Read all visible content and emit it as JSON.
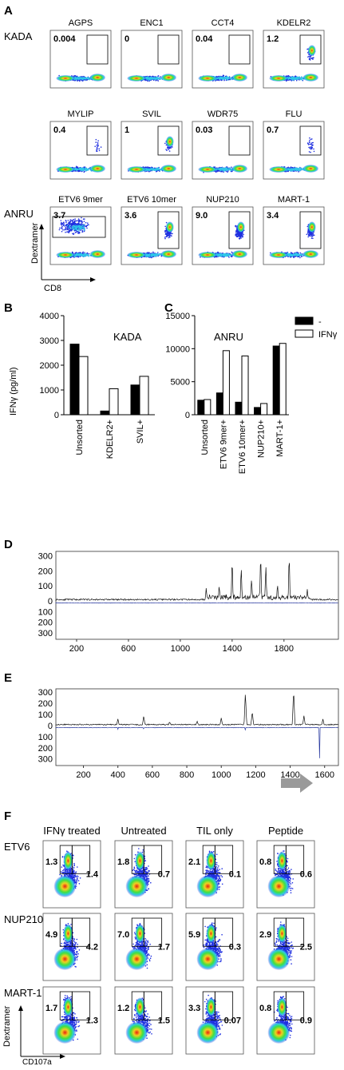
{
  "panelA": {
    "label": "A",
    "row_labels": [
      "KADA",
      "",
      "ANRU"
    ],
    "rows": [
      [
        {
          "title": "AGPS",
          "value": "0.004",
          "gate": "tr"
        },
        {
          "title": "ENC1",
          "value": "0",
          "gate": "tr"
        },
        {
          "title": "CCT4",
          "value": "0.04",
          "gate": "tr"
        },
        {
          "title": "KDELR2",
          "value": "1.2",
          "gate": "tr"
        }
      ],
      [
        {
          "title": "MYLIP",
          "value": "0.4",
          "gate": "tr"
        },
        {
          "title": "SVIL",
          "value": "1",
          "gate": "tr"
        },
        {
          "title": "WDR75",
          "value": "0.03",
          "gate": "tr"
        },
        {
          "title": "FLU",
          "value": "0.7",
          "gate": "tr"
        }
      ],
      [
        {
          "title": "ETV6 9mer",
          "value": "3.7",
          "gate": "wide"
        },
        {
          "title": "ETV6 10mer",
          "value": "3.6",
          "gate": "tr"
        },
        {
          "title": "NUP210",
          "value": "9.0",
          "gate": "tr"
        },
        {
          "title": "MART-1",
          "value": "3.4",
          "gate": "tr"
        }
      ]
    ],
    "ylabel": "Dextramer",
    "xlabel": "CD8"
  },
  "panelB": {
    "label": "B",
    "chart_data": {
      "type": "bar",
      "title": "KADA",
      "ylabel": "IFNγ (pg/ml)",
      "ylim": [
        0,
        4000
      ],
      "yticks": [
        "0",
        "1000",
        "2000",
        "3000",
        "4000"
      ],
      "categories": [
        "Unsorted",
        "KDELR2+",
        "SVIL+"
      ],
      "series": [
        {
          "name": "-",
          "values": [
            2850,
            150,
            1200
          ],
          "color": "#000000"
        },
        {
          "name": "IFNγ",
          "values": [
            2350,
            1050,
            1550
          ],
          "color": "#ffffff"
        }
      ]
    }
  },
  "panelC": {
    "label": "C",
    "chart_data": {
      "type": "bar",
      "title": "ANRU",
      "ylim": [
        0,
        15000
      ],
      "yticks": [
        "0",
        "5000",
        "10000",
        "15000"
      ],
      "categories": [
        "Unsorted",
        "ETV6 9mer+",
        "ETV6 10mer+",
        "NUP210+",
        "MART-1+"
      ],
      "series": [
        {
          "name": "-",
          "values": [
            2200,
            3300,
            1900,
            1100,
            10400
          ],
          "color": "#000000"
        },
        {
          "name": "IFNγ",
          "values": [
            2300,
            9700,
            8900,
            1700,
            10800
          ],
          "color": "#ffffff"
        }
      ]
    },
    "legend": [
      {
        "label": "-",
        "fill": "#000000"
      },
      {
        "label": "IFNγ",
        "fill": "#ffffff"
      }
    ]
  },
  "panelD": {
    "label": "D",
    "chart_data": {
      "type": "line",
      "xticks": [
        "200",
        "600",
        "1000",
        "1400",
        "1800"
      ],
      "xlim": [
        40,
        2220
      ],
      "yticks_top": [
        "300",
        "200",
        "100",
        "0"
      ],
      "yticks_bottom": [
        "100",
        "200",
        "300"
      ],
      "peaks_up": [
        [
          1400,
          300
        ],
        [
          1470,
          240
        ],
        [
          1620,
          330
        ],
        [
          1660,
          250
        ],
        [
          1840,
          330
        ],
        [
          1550,
          160
        ],
        [
          1300,
          110
        ],
        [
          1200,
          90
        ],
        [
          1750,
          120
        ],
        [
          1980,
          80
        ]
      ]
    }
  },
  "panelE": {
    "label": "E",
    "chart_data": {
      "type": "line",
      "xticks": [
        "200",
        "400",
        "600",
        "800",
        "1000",
        "1200",
        "1400",
        "1600"
      ],
      "xlim": [
        40,
        1680
      ],
      "yticks_top": [
        "300",
        "200",
        "100",
        "0"
      ],
      "yticks_bottom": [
        "100",
        "200",
        "300"
      ],
      "peaks_up": [
        [
          400,
          60
        ],
        [
          550,
          90
        ],
        [
          1000,
          70
        ],
        [
          1140,
          300
        ],
        [
          1180,
          130
        ],
        [
          1420,
          330
        ],
        [
          1480,
          90
        ],
        [
          1590,
          60
        ],
        [
          860,
          40
        ],
        [
          700,
          35
        ]
      ],
      "peaks_down": [
        [
          1570,
          360
        ],
        [
          400,
          20
        ],
        [
          1140,
          30
        ],
        [
          550,
          20
        ]
      ]
    }
  },
  "panelF": {
    "label": "F",
    "col_titles": [
      "IFNγ treated",
      "Untreated",
      "TIL only",
      "Peptide"
    ],
    "row_labels": [
      "ETV6",
      "NUP210",
      "MART-1"
    ],
    "values": [
      [
        [
          "1.3",
          "1.4"
        ],
        [
          "1.8",
          "0.7"
        ],
        [
          "2.1",
          "0.1"
        ],
        [
          "0.8",
          "0.6"
        ]
      ],
      [
        [
          "4.9",
          "4.2"
        ],
        [
          "7.0",
          "1.7"
        ],
        [
          "5.9",
          "0.3"
        ],
        [
          "2.9",
          "2.5"
        ]
      ],
      [
        [
          "1.7",
          "1.3"
        ],
        [
          "1.2",
          "1.5"
        ],
        [
          "3.3",
          "0.07"
        ],
        [
          "0.8",
          "0.9"
        ]
      ]
    ],
    "ylabel": "Dextramer",
    "xlabel": "CD107a"
  },
  "colors": {
    "dot_blue": "#2030e0",
    "dot_cyan": "#30c8e8",
    "dot_green": "#40e040",
    "dot_yellow": "#f0f030",
    "dot_red": "#f03020",
    "trace_black": "#111111",
    "trace_blue": "#2a3aa0"
  }
}
